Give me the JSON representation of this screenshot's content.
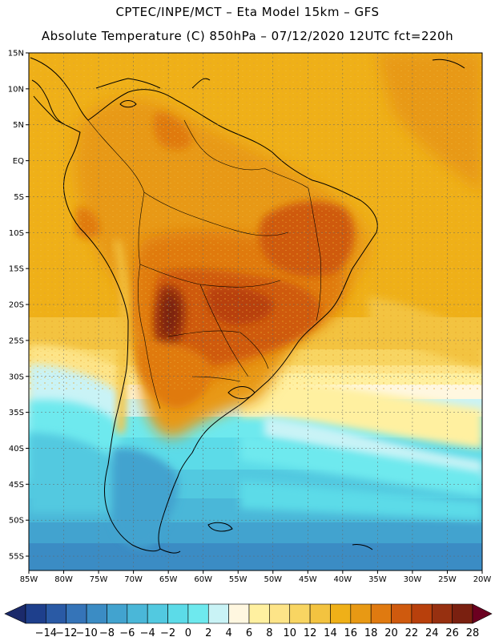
{
  "header": {
    "title_line1": "CPTEC/INPE/MCT –  Eta Model 15km – GFS",
    "title_line2": "Absolute Temperature (C) 850hPa – 07/12/2020 12UTC fct=220h"
  },
  "map": {
    "lat_labels": [
      "15N",
      "10N",
      "5N",
      "EQ",
      "5S",
      "10S",
      "15S",
      "20S",
      "25S",
      "30S",
      "35S",
      "40S",
      "45S",
      "50S",
      "55S"
    ],
    "lon_labels": [
      "85W",
      "80W",
      "75W",
      "70W",
      "65W",
      "60W",
      "55W",
      "50W",
      "45W",
      "40W",
      "35W",
      "30W",
      "25W",
      "20W"
    ],
    "lat_range": [
      15,
      -57
    ],
    "lon_range": [
      -85,
      -20
    ]
  },
  "colorbar": {
    "labels": [
      "-14",
      "-12",
      "-10",
      "-8",
      "-6",
      "-4",
      "-2",
      "0",
      "2",
      "4",
      "6",
      "8",
      "10",
      "12",
      "14",
      "16",
      "18",
      "20",
      "22",
      "24",
      "26",
      "28"
    ],
    "under_color": "#1b2a6b",
    "over_color": "#6b0020",
    "colors": [
      "#1e3f8c",
      "#2a5aa5",
      "#3574b8",
      "#3b8cc4",
      "#42a3cf",
      "#4ab7d8",
      "#52c9e0",
      "#5cdbe8",
      "#6ee9ee",
      "#c9f3f6",
      "#fff7e0",
      "#fff0a0",
      "#fde488",
      "#f8d562",
      "#f3c340",
      "#efb018",
      "#e89914",
      "#e07a10",
      "#cf5a0e",
      "#b8400c",
      "#973010",
      "#7a2010"
    ]
  }
}
